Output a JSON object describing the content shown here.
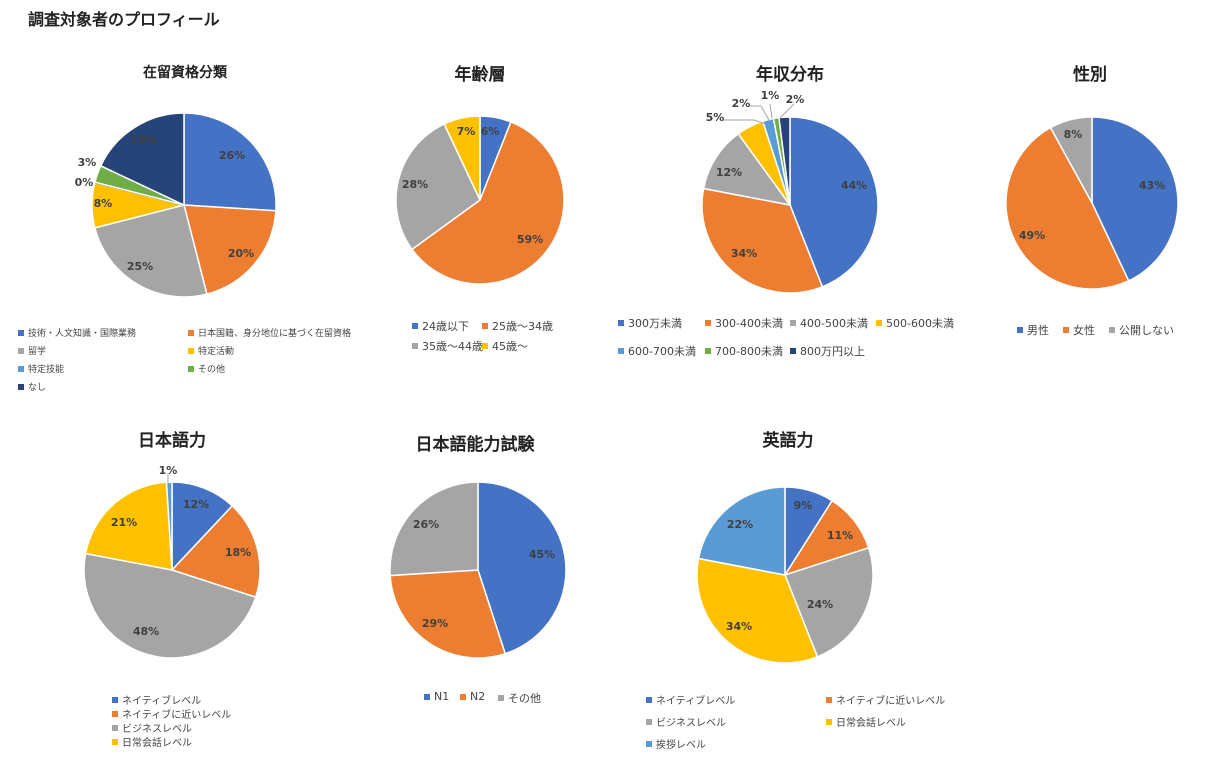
{
  "page_title": "調査対象者のプロフィール",
  "colors": {
    "blue": "#4472C4",
    "orange": "#ED7D31",
    "gray": "#A5A5A5",
    "yellow": "#FFC000",
    "light_blue": "#5B9BD5",
    "green": "#70AD47",
    "navy": "#264478"
  },
  "chart_data": [
    {
      "type": "pie",
      "title": "在留資格分類",
      "categories": [
        "技術・人文知識・国際業務",
        "日本国籍、身分地位に基づく在留資格",
        "留学",
        "特定活動",
        "特定技能",
        "その他",
        "なし"
      ],
      "values": [
        26,
        20,
        25,
        8,
        0,
        3,
        18
      ],
      "labels": [
        "26%",
        "20%",
        "25%",
        "8%",
        "0%",
        "3%",
        "18%"
      ],
      "colors": [
        "#4472C4",
        "#ED7D31",
        "#A5A5A5",
        "#FFC000",
        "#5B9BD5",
        "#70AD47",
        "#264478"
      ],
      "legend_position": "bottom"
    },
    {
      "type": "pie",
      "title": "年齢層",
      "categories": [
        "24歳以下",
        "25歳～34歳",
        "35歳～44歳",
        "45歳～"
      ],
      "values": [
        6,
        59,
        28,
        7
      ],
      "labels": [
        "6%",
        "59%",
        "28%",
        "7%"
      ],
      "colors": [
        "#4472C4",
        "#ED7D31",
        "#A5A5A5",
        "#FFC000"
      ],
      "legend_position": "bottom"
    },
    {
      "type": "pie",
      "title": "年収分布",
      "categories": [
        "300万未満",
        "300-400未満",
        "400-500未満",
        "500-600未満",
        "600-700未満",
        "700-800未満",
        "800万円以上"
      ],
      "values": [
        44,
        34,
        12,
        5,
        2,
        1,
        2
      ],
      "labels": [
        "44%",
        "34%",
        "12%",
        "5%",
        "2%",
        "1%",
        "2%"
      ],
      "colors": [
        "#4472C4",
        "#ED7D31",
        "#A5A5A5",
        "#FFC000",
        "#5B9BD5",
        "#70AD47",
        "#264478"
      ],
      "legend_position": "bottom"
    },
    {
      "type": "pie",
      "title": "性別",
      "categories": [
        "男性",
        "女性",
        "公開しない"
      ],
      "values": [
        43,
        49,
        8
      ],
      "labels": [
        "43%",
        "49%",
        "8%"
      ],
      "colors": [
        "#4472C4",
        "#ED7D31",
        "#A5A5A5"
      ],
      "legend_position": "bottom"
    },
    {
      "type": "pie",
      "title": "日本語力",
      "categories": [
        "ネイティブレベル",
        "ネイティブに近いレベル",
        "ビジネスレベル",
        "日常会話レベル",
        ""
      ],
      "values": [
        12,
        18,
        48,
        21,
        1
      ],
      "labels": [
        "12%",
        "18%",
        "48%",
        "21%",
        "1%"
      ],
      "colors": [
        "#4472C4",
        "#ED7D31",
        "#A5A5A5",
        "#FFC000",
        "#5B9BD5"
      ],
      "legend_position": "bottom"
    },
    {
      "type": "pie",
      "title": "日本語能力試験",
      "categories": [
        "N1",
        "N2",
        "その他"
      ],
      "values": [
        45,
        29,
        26
      ],
      "labels": [
        "45%",
        "29%",
        "26%"
      ],
      "colors": [
        "#4472C4",
        "#ED7D31",
        "#A5A5A5"
      ],
      "legend_position": "bottom"
    },
    {
      "type": "pie",
      "title": "英語力",
      "categories": [
        "ネイティブレベル",
        "ネイティブに近いレベル",
        "ビジネスレベル",
        "日常会話レベル",
        "挨拶レベル"
      ],
      "values": [
        9,
        11,
        24,
        34,
        22
      ],
      "labels": [
        "9%",
        "11%",
        "24%",
        "34%",
        "22%"
      ],
      "colors": [
        "#4472C4",
        "#ED7D31",
        "#A5A5A5",
        "#FFC000",
        "#5B9BD5"
      ],
      "legend_position": "bottom"
    }
  ]
}
